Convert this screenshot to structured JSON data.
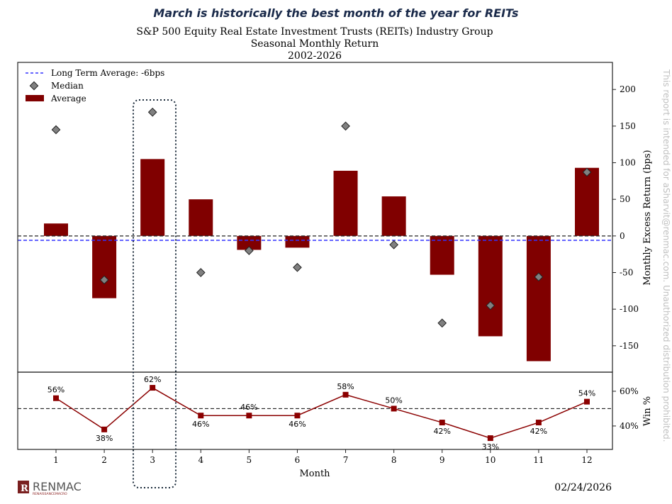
{
  "headline": "March is historically the best month of the year for REITs",
  "watermark": "This report is intended for aSharvit@renmac.com. Unauthorized distribution prohibited.",
  "logo": {
    "name": "RENMAC",
    "tagline": "RENAISSANCEMACRO"
  },
  "date": "02/24/2026",
  "colors": {
    "bar": "#800000",
    "median": "#808080",
    "lta": "#3333ff",
    "win_line": "#8b0000"
  },
  "chart_data": [
    {
      "type": "bar",
      "title": "S&P 500 Equity Real Estate Investment Trusts (REITs) Industry Group",
      "subtitle": "Seasonal Monthly Return",
      "period": "2002-2026",
      "categories": [
        "1",
        "2",
        "3",
        "4",
        "5",
        "6",
        "7",
        "8",
        "9",
        "10",
        "11",
        "12"
      ],
      "series": [
        {
          "name": "Average",
          "values": [
            17,
            -85,
            105,
            50,
            -19,
            -16,
            89,
            54,
            -53,
            -137,
            -171,
            93
          ]
        },
        {
          "name": "Median",
          "type": "scatter",
          "values": [
            145,
            -60,
            169,
            -50,
            -20,
            -43,
            150,
            -12,
            -119,
            -95,
            -56,
            87
          ]
        }
      ],
      "reference_lines": [
        {
          "name": "Long Term Average: -6bps",
          "value": -6
        },
        {
          "name": "zero",
          "value": 0
        }
      ],
      "legend": [
        "Long Term Average: -6bps",
        "Median",
        "Average"
      ],
      "legend_placement": "top-left",
      "ylabel": "Monthly Excess Return (bps)",
      "yticks": [
        200,
        150,
        100,
        50,
        0,
        -50,
        -100,
        -150
      ],
      "ytick_labels": [
        "200",
        "150",
        "100",
        "50",
        "0",
        "-50",
        "-100",
        "-150"
      ],
      "ylim": [
        -186,
        237
      ],
      "highlight_category": "3"
    },
    {
      "type": "line",
      "categories": [
        "1",
        "2",
        "3",
        "4",
        "5",
        "6",
        "7",
        "8",
        "9",
        "10",
        "11",
        "12"
      ],
      "values": [
        56,
        38,
        62,
        46,
        46,
        46,
        58,
        50,
        42,
        33,
        42,
        54
      ],
      "data_labels": [
        "56%",
        "38%",
        "62%",
        "46%",
        "46%",
        "46%",
        "58%",
        "50%",
        "42%",
        "33%",
        "42%",
        "54%"
      ],
      "reference_line": 50,
      "xlabel": "Month",
      "ylabel": "Win %",
      "yticks": [
        60,
        40
      ],
      "ytick_labels": [
        "60%",
        "40%"
      ],
      "ylim": [
        26.5,
        71
      ]
    }
  ]
}
